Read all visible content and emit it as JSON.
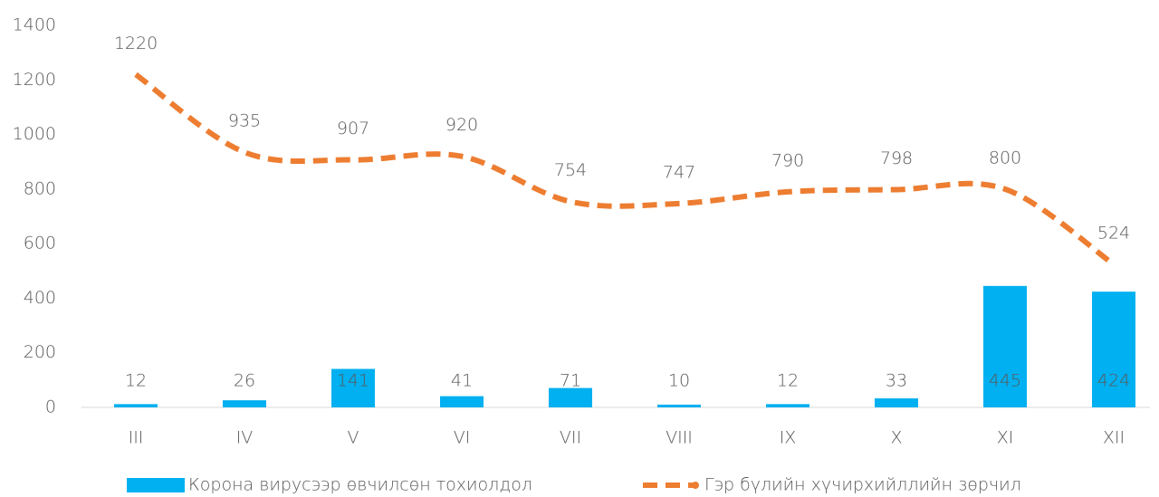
{
  "chart_data": {
    "type": "combo",
    "categories": [
      "III",
      "IV",
      "V",
      "VI",
      "VII",
      "VIII",
      "IX",
      "X",
      "XI",
      "XII"
    ],
    "series": [
      {
        "name": "Корона вирусээр өвчилсөн тохиолдол",
        "type": "bar",
        "color": "#00b0f0",
        "values": [
          12,
          26,
          141,
          41,
          71,
          10,
          12,
          33,
          445,
          424
        ]
      },
      {
        "name": "Гэр бүлийн хүчирхийллийн зөрчил",
        "type": "line",
        "style": "dashed",
        "color": "#ed7d31",
        "values": [
          1220,
          935,
          907,
          920,
          754,
          747,
          790,
          798,
          800,
          524
        ]
      }
    ],
    "ylim": [
      0,
      1400
    ],
    "yticks": [
      0,
      200,
      400,
      600,
      800,
      1000,
      1200,
      1400
    ],
    "legend": "bottom"
  }
}
